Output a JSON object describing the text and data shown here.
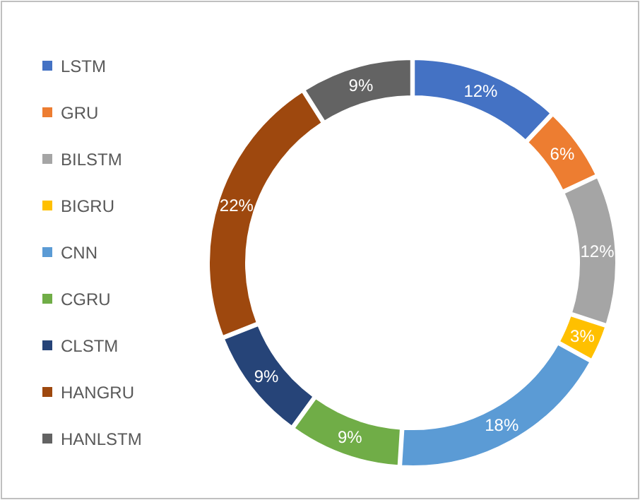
{
  "chart_data": {
    "type": "donut",
    "categories": [
      "LSTM",
      "GRU",
      "BILSTM",
      "BIGRU",
      "CNN",
      "CGRU",
      "CLSTM",
      "HANGRU",
      "HANLSTM"
    ],
    "values": [
      12,
      6,
      12,
      3,
      18,
      9,
      9,
      22,
      9
    ],
    "value_labels": [
      "12%",
      "6%",
      "12%",
      "3%",
      "18%",
      "9%",
      "9%",
      "22%",
      "9%"
    ],
    "colors": [
      "#4472c4",
      "#ed7d31",
      "#a5a5a5",
      "#ffc000",
      "#5b9bd5",
      "#70ad47",
      "#264478",
      "#9e480e",
      "#636363"
    ],
    "legend": "left"
  }
}
